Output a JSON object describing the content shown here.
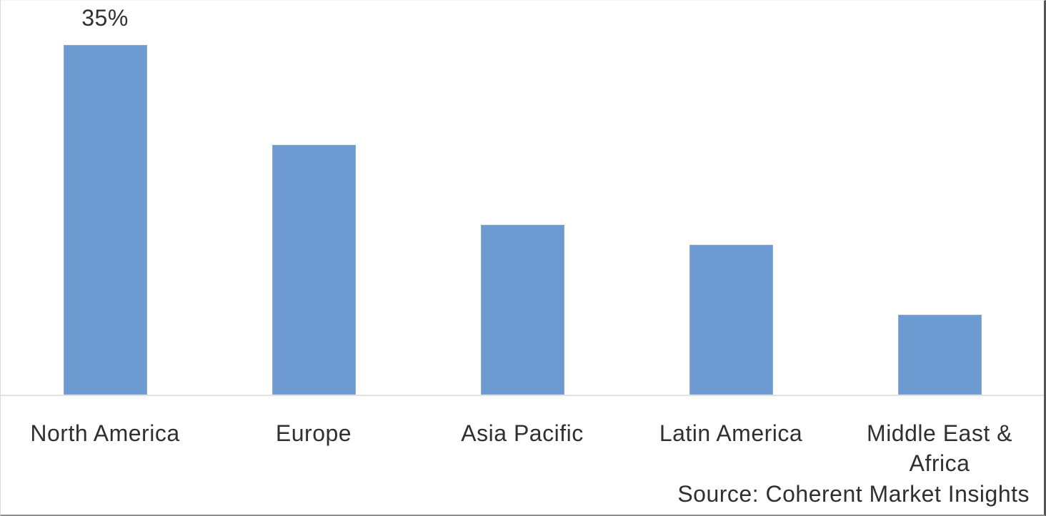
{
  "chart_data": {
    "type": "bar",
    "categories": [
      "North America",
      "Europe",
      "Asia Pacific",
      "Latin America",
      "Middle East & Africa"
    ],
    "values": [
      35,
      25,
      17,
      15,
      8
    ],
    "unit": "%",
    "data_labels": [
      "35%",
      "",
      "",
      "",
      ""
    ],
    "title": "",
    "xlabel": "",
    "ylabel": "",
    "ylim": [
      0,
      39.4
    ],
    "grid": false,
    "legend": "none",
    "value_axis_visible": false,
    "bar_color": "#6c9ad1",
    "bar_border_color": "#86abd9",
    "axis_line_color": "#e2e2e2",
    "label_color": "#303030"
  },
  "source": {
    "text": "Source: Coherent Market Insights"
  }
}
